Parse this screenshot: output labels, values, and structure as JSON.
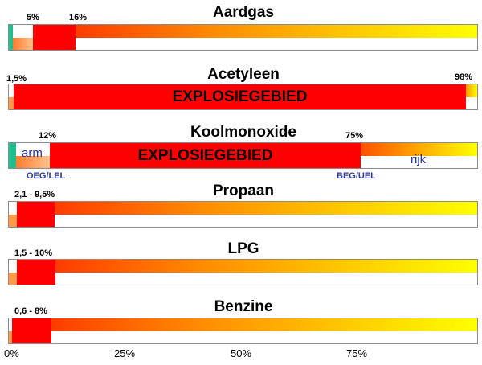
{
  "gases": [
    {
      "name": "Aardgas",
      "labels": [
        "5%",
        "16%"
      ]
    },
    {
      "name": "Acetyleen",
      "labels": [
        "1,5%",
        "98%"
      ],
      "zone_label": "EXPLOSIEGEBIED"
    },
    {
      "name": "Koolmonoxide",
      "labels": [
        "12%",
        "75%"
      ],
      "zone_label": "EXPLOSIEGEBIED",
      "lean_label": "arm",
      "rich_label": "rijk",
      "lower_limit_label": "OEG/LEL",
      "upper_limit_label": "BEG/UEL"
    },
    {
      "name": "Propaan",
      "labels": [
        "2,1 - 9,5%"
      ]
    },
    {
      "name": "LPG",
      "labels": [
        "1,5 - 10%"
      ]
    },
    {
      "name": "Benzine",
      "labels": [
        "0,6 - 8%"
      ]
    }
  ],
  "axis": {
    "ticks": [
      "0%",
      "25%",
      "50%",
      "75%"
    ]
  },
  "colors": {
    "explosive": "#ff0000",
    "gradient_start": "#ff3c00",
    "gradient_end": "#ffff00",
    "safe": "#1dbf8f",
    "border": "#8c8c8c",
    "text_blue": "#1f2fa8"
  }
}
